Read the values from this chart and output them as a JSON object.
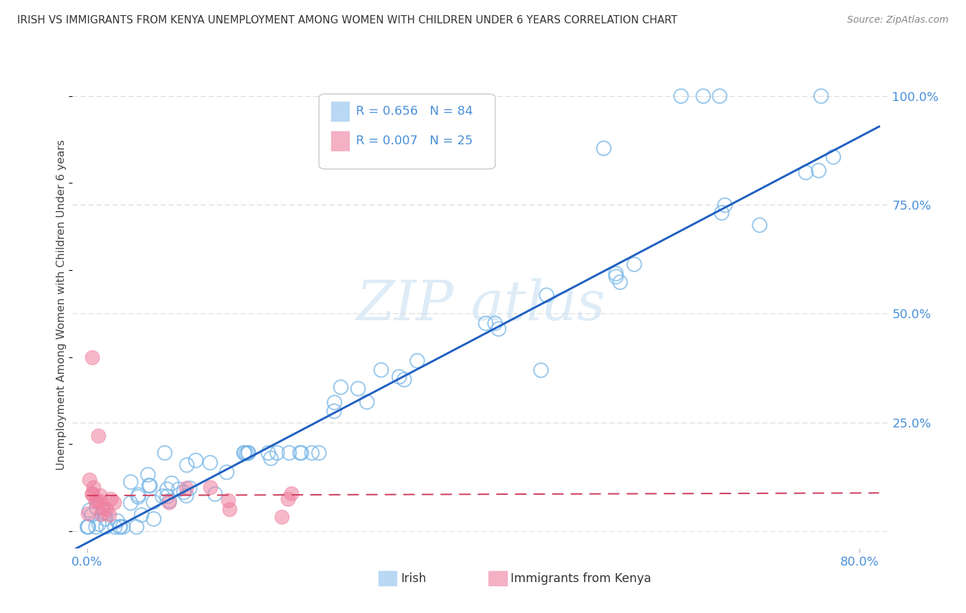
{
  "title": "IRISH VS IMMIGRANTS FROM KENYA UNEMPLOYMENT AMONG WOMEN WITH CHILDREN UNDER 6 YEARS CORRELATION CHART",
  "source": "Source: ZipAtlas.com",
  "xlabel_irish": "Irish",
  "xlabel_kenya": "Immigrants from Kenya",
  "ylabel": "Unemployment Among Women with Children Under 6 years",
  "irish_R": "0.656",
  "irish_N": "84",
  "kenya_R": "0.007",
  "kenya_N": "25",
  "irish_color": "#7ab8e8",
  "kenya_color": "#f080a0",
  "irish_line_color": "#2060c0",
  "kenya_line_color": "#d04060",
  "background_color": "#ffffff",
  "grid_color": "#cccccc",
  "tick_color": "#4a90d9",
  "title_color": "#333333",
  "source_color": "#888888"
}
